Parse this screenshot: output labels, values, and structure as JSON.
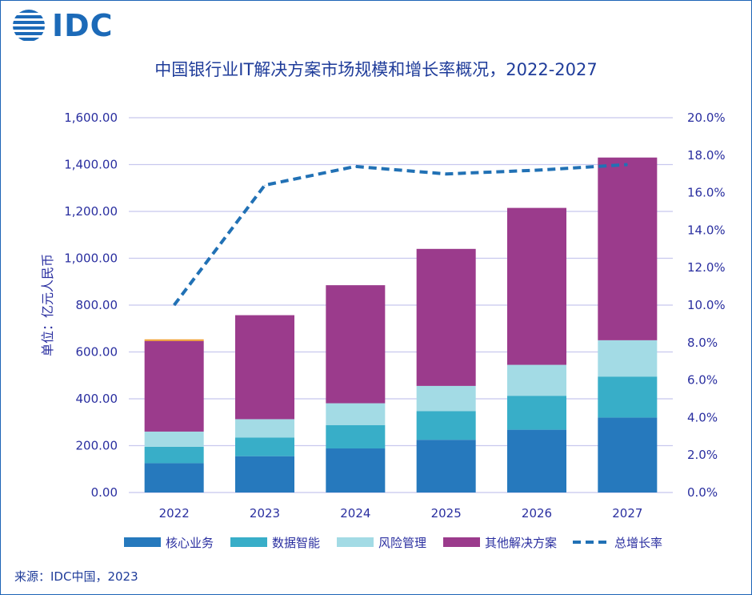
{
  "logo": {
    "text": "IDC"
  },
  "title": "中国银行业IT解决方案市场规模和增长率概况，2022-2027",
  "source": "来源：IDC中国，2023",
  "colors": {
    "core": "#2679bd",
    "data": "#38aec8",
    "risk": "#a3dbe5",
    "other": "#9b3b8c",
    "growth": "#2171b5",
    "top_accent": "#f0a030",
    "grid": "#c8c8ee",
    "axis_text": "#2a2fa0"
  },
  "chart_data": {
    "type": "bar",
    "stacked": true,
    "categories": [
      "2022",
      "2023",
      "2024",
      "2025",
      "2026",
      "2027"
    ],
    "ylabel": "单位：亿元人民币",
    "ylim": [
      0,
      1600
    ],
    "y_ticks": [
      "0.00",
      "200.00",
      "400.00",
      "600.00",
      "800.00",
      "1,000.00",
      "1,200.00",
      "1,400.00",
      "1,600.00"
    ],
    "y2lim": [
      0,
      20
    ],
    "y2_ticks": [
      "0.0%",
      "2.0%",
      "4.0%",
      "6.0%",
      "8.0%",
      "10.0%",
      "12.0%",
      "14.0%",
      "16.0%",
      "18.0%",
      "20.0%"
    ],
    "grid": true,
    "legend_position": "bottom",
    "series": [
      {
        "name": "核心业务",
        "color_key": "core",
        "values": [
          125,
          155,
          188,
          225,
          268,
          320
        ]
      },
      {
        "name": "数据智能",
        "color_key": "data",
        "values": [
          70,
          80,
          100,
          122,
          145,
          175
        ]
      },
      {
        "name": "风险管理",
        "color_key": "risk",
        "values": [
          65,
          78,
          93,
          108,
          132,
          155
        ]
      },
      {
        "name": "其他解决方案",
        "color_key": "other",
        "values": [
          387,
          444,
          504,
          585,
          670,
          780
        ]
      }
    ],
    "line_series": {
      "name": "总增长率",
      "axis": "right",
      "style": "dashed",
      "color_key": "growth",
      "values": [
        10.0,
        16.4,
        17.4,
        17.0,
        17.2,
        17.5
      ]
    },
    "legend": [
      "核心业务",
      "数据智能",
      "风险管理",
      "其他解决方案",
      "总增长率"
    ]
  }
}
